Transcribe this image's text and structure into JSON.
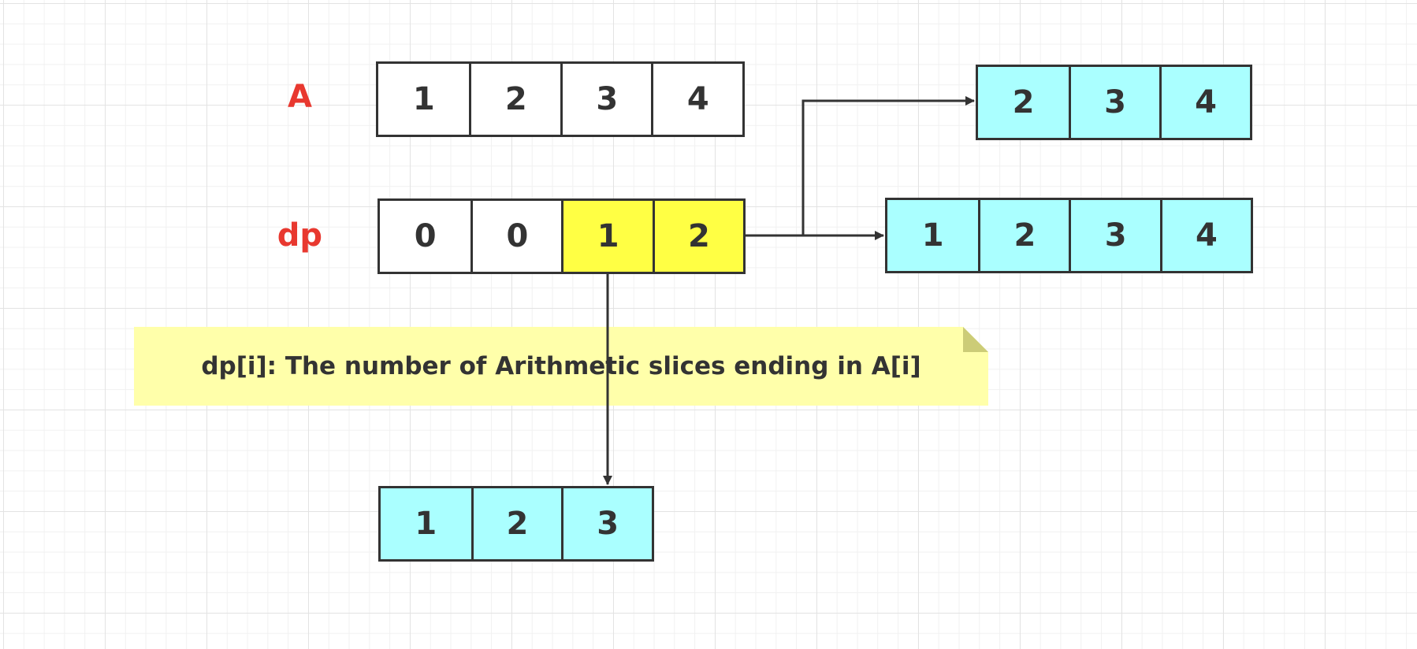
{
  "colors": {
    "label": "#e8382f",
    "cell_fill": "#ffffff",
    "cell_highlight": "#ffff44",
    "result_fill": "#aaffff",
    "note_fill": "#ffffaa",
    "note_fold": "#cccc77",
    "stroke": "#333333"
  },
  "arrays": {
    "a": {
      "label": "A",
      "values": [
        "1",
        "2",
        "3",
        "4"
      ]
    },
    "dp": {
      "label": "dp",
      "values": [
        "0",
        "0",
        "1",
        "2"
      ],
      "highlighted": [
        2,
        3
      ]
    }
  },
  "results": {
    "top": [
      "2",
      "3",
      "4"
    ],
    "middle": [
      "1",
      "2",
      "3",
      "4"
    ],
    "bottom": [
      "1",
      "2",
      "3"
    ]
  },
  "note": {
    "text": "dp[i]: The number of Arithmetic slices ending in A[i]"
  }
}
